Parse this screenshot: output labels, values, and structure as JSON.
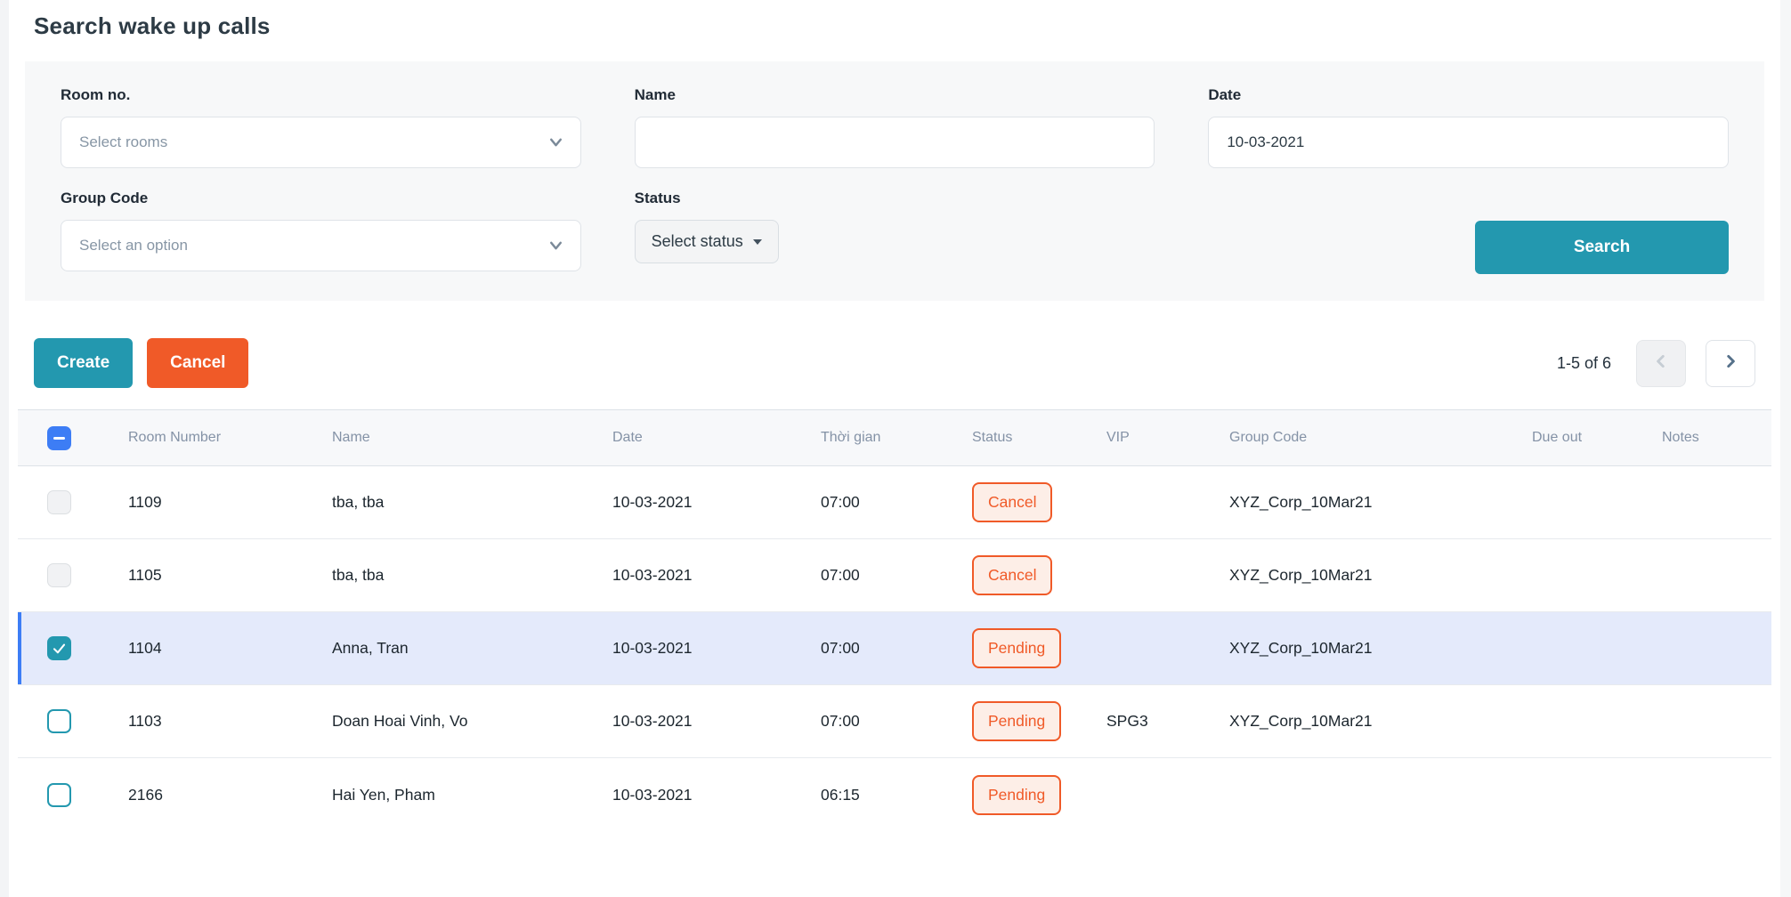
{
  "page": {
    "title": "Search wake up calls"
  },
  "filters": {
    "room": {
      "label": "Room no.",
      "placeholder": "Select rooms"
    },
    "name": {
      "label": "Name",
      "value": ""
    },
    "date": {
      "label": "Date",
      "value": "10-03-2021"
    },
    "group_code": {
      "label": "Group Code",
      "placeholder": "Select an option"
    },
    "status": {
      "label": "Status",
      "button_label": "Select status"
    },
    "search_button": "Search"
  },
  "toolbar": {
    "create_label": "Create",
    "cancel_label": "Cancel"
  },
  "pagination": {
    "range": "1-5 of 6",
    "prev_enabled": false,
    "next_enabled": true
  },
  "table": {
    "columns": [
      "Room Number",
      "Name",
      "Date",
      "Thời gian",
      "Status",
      "VIP",
      "Group Code",
      "Due out",
      "Notes"
    ],
    "header_checkbox_state": "indeterminate",
    "rows": [
      {
        "checkbox": "disabled",
        "selected": false,
        "room_number": "1109",
        "name": "tba, tba",
        "date": "10-03-2021",
        "time": "07:00",
        "status": "Cancel",
        "vip": "",
        "group_code": "XYZ_Corp_10Mar21",
        "due_out": "",
        "notes": ""
      },
      {
        "checkbox": "disabled",
        "selected": false,
        "room_number": "1105",
        "name": "tba, tba",
        "date": "10-03-2021",
        "time": "07:00",
        "status": "Cancel",
        "vip": "",
        "group_code": "XYZ_Corp_10Mar21",
        "due_out": "",
        "notes": ""
      },
      {
        "checkbox": "checked",
        "selected": true,
        "room_number": "1104",
        "name": "Anna, Tran",
        "date": "10-03-2021",
        "time": "07:00",
        "status": "Pending",
        "vip": "",
        "group_code": "XYZ_Corp_10Mar21",
        "due_out": "",
        "notes": ""
      },
      {
        "checkbox": "unchecked",
        "selected": false,
        "room_number": "1103",
        "name": "Doan Hoai Vinh, Vo",
        "date": "10-03-2021",
        "time": "07:00",
        "status": "Pending",
        "vip": "SPG3",
        "group_code": "XYZ_Corp_10Mar21",
        "due_out": "",
        "notes": ""
      },
      {
        "checkbox": "unchecked",
        "selected": false,
        "room_number": "2166",
        "name": "Hai Yen, Pham",
        "date": "10-03-2021",
        "time": "06:15",
        "status": "Pending",
        "vip": "",
        "group_code": "",
        "due_out": "",
        "notes": ""
      }
    ]
  },
  "icons": {
    "chevron_down": "chevron-down-icon",
    "caret_down": "caret-down-icon",
    "chevron_left": "chevron-left-icon",
    "chevron_right": "chevron-right-icon",
    "minus": "minus-icon",
    "check": "check-icon"
  },
  "colors": {
    "accent_teal": "#2398AF",
    "accent_orange": "#F05A28",
    "badge_bg": "#FDEEE7",
    "selected_row_bg": "#E4EAFB",
    "selection_blue": "#3D7DF5",
    "panel_bg": "#F7F8F9"
  }
}
